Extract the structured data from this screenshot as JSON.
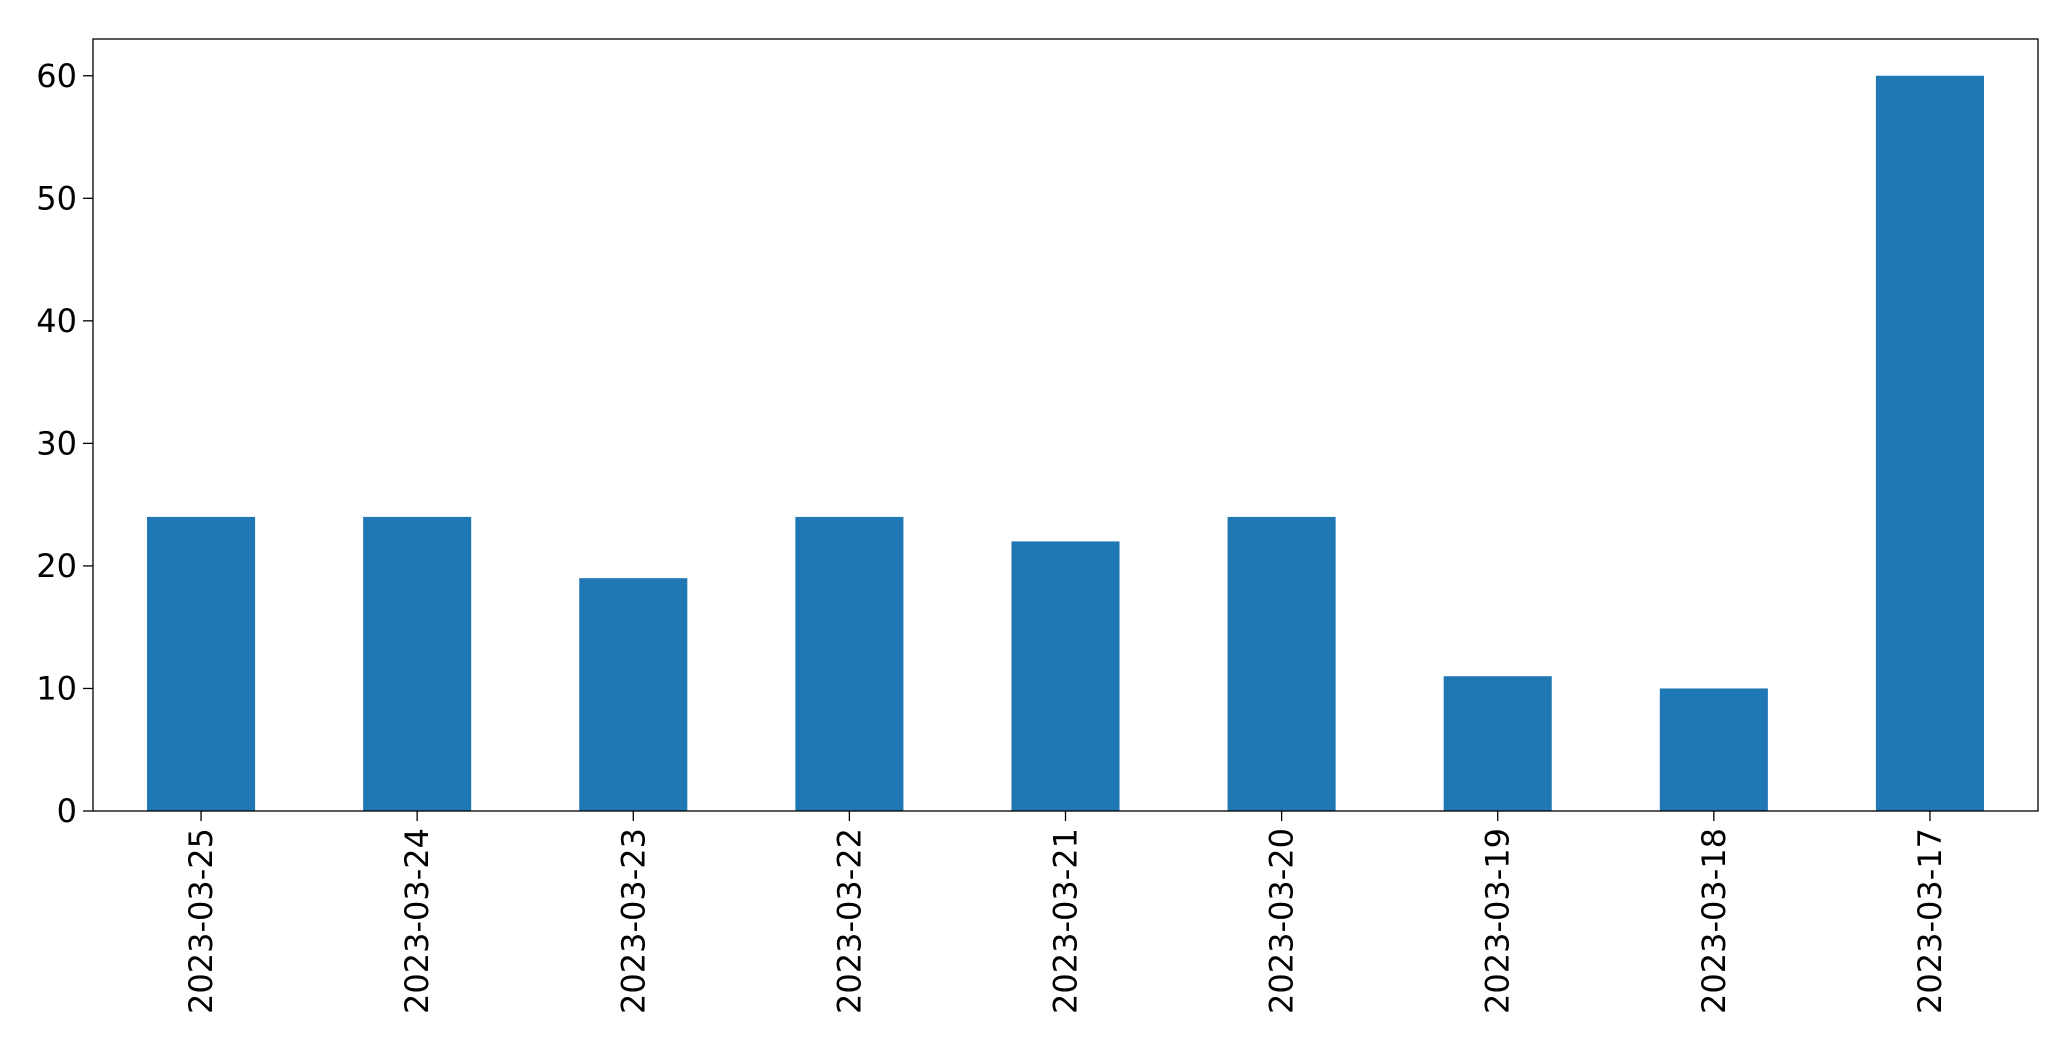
{
  "chart_data": {
    "type": "bar",
    "categories": [
      "2023-03-25",
      "2023-03-24",
      "2023-03-23",
      "2023-03-22",
      "2023-03-21",
      "2023-03-20",
      "2023-03-19",
      "2023-03-18",
      "2023-03-17"
    ],
    "values": [
      24,
      24,
      19,
      24,
      22,
      24,
      11,
      10,
      60
    ],
    "title": "",
    "xlabel": "",
    "ylabel": "",
    "ylim": [
      0,
      63
    ],
    "yticks": [
      0,
      10,
      20,
      30,
      40,
      50,
      60
    ],
    "grid": false,
    "legend": "none",
    "bar_color": "#1f77b4"
  }
}
